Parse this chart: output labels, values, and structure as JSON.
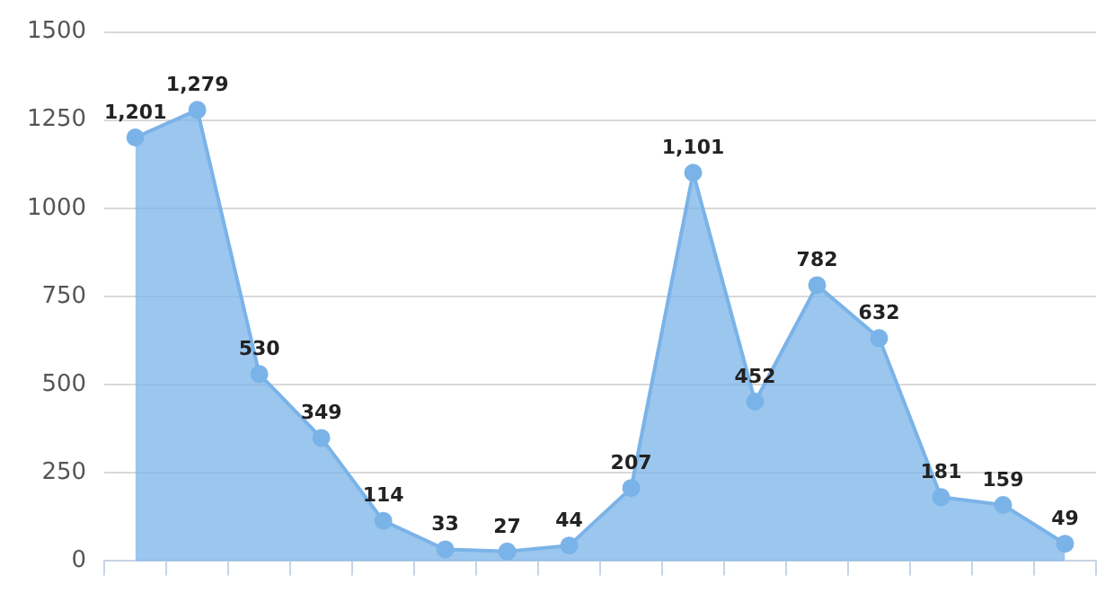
{
  "chart_data": {
    "type": "area",
    "categories": [
      null,
      null,
      null,
      null,
      null,
      null,
      null,
      null,
      null,
      null,
      null,
      null,
      null,
      null,
      null,
      null
    ],
    "values": [
      1201,
      1279,
      530,
      349,
      114,
      33,
      27,
      44,
      207,
      1101,
      452,
      782,
      632,
      181,
      159,
      49
    ],
    "color": "#7ab3e8",
    "ylim": [
      0,
      1500
    ],
    "yticks": [
      0,
      250,
      500,
      750,
      1000,
      1250,
      1500
    ],
    "value_labels": [
      "1,201",
      "1,279",
      "530",
      "349",
      "114",
      "33",
      "27",
      "44",
      "207",
      "1,101",
      "452",
      "782",
      "632",
      "181",
      "159",
      "49"
    ],
    "grid": "y",
    "marker": "circle",
    "tick_labels": "y"
  }
}
